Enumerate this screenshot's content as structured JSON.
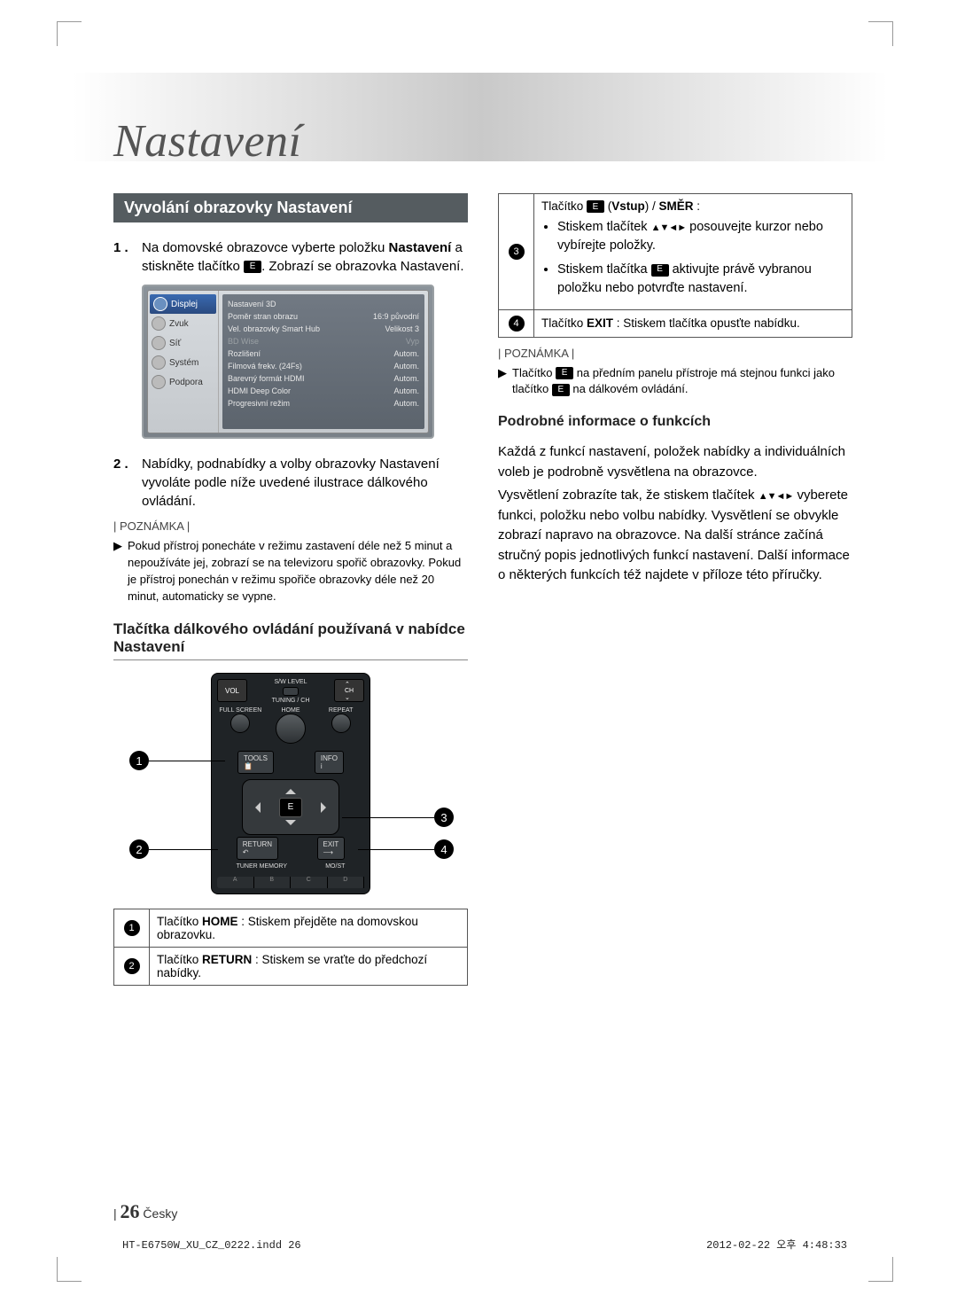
{
  "chapter_title": "Nastavení",
  "section_bar": "Vyvolání obrazovky Nastavení",
  "step1": {
    "n": "1 .",
    "pre": "Na domovské obrazovce vyberte položku ",
    "bold": "Nastavení",
    "mid": " a stiskněte tlačítko ",
    "post": ". Zobrazí se obrazovka Nastavení."
  },
  "settings_panel": {
    "side_items": [
      {
        "label": "Displej",
        "selected": true
      },
      {
        "label": "Zvuk",
        "selected": false
      },
      {
        "label": "Síť",
        "selected": false
      },
      {
        "label": "Systém",
        "selected": false
      },
      {
        "label": "Podpora",
        "selected": false
      }
    ],
    "rows": [
      {
        "l": "Nastavení 3D",
        "r": "",
        "dim": false
      },
      {
        "l": "Poměr stran obrazu",
        "r": "16:9 původní",
        "dim": false
      },
      {
        "l": "Vel. obrazovky Smart Hub",
        "r": "Velikost 3",
        "dim": false
      },
      {
        "l": "BD Wise",
        "r": "Vyp",
        "dim": true
      },
      {
        "l": "Rozlišení",
        "r": "Autom.",
        "dim": false
      },
      {
        "l": "Filmová frekv. (24Fs)",
        "r": "Autom.",
        "dim": false
      },
      {
        "l": "Barevný formát HDMI",
        "r": "Autom.",
        "dim": false
      },
      {
        "l": "HDMI Deep Color",
        "r": "Autom.",
        "dim": false
      },
      {
        "l": "Progresivní režim",
        "r": "Autom.",
        "dim": false
      }
    ]
  },
  "step2": {
    "n": "2 .",
    "text": "Nabídky, podnabídky a volby obrazovky Nastavení vyvoláte podle níže uvedené ilustrace dálkového ovládání."
  },
  "note_label": "| POZNÁMKA |",
  "note1": "Pokud přístroj ponecháte v režimu zastavení déle než 5 minut a nepoužíváte jej, zobrazí se na televizoru spořič obrazovky. Pokud je přístroj ponechán v režimu spořiče obrazovky déle než 20 minut, automaticky se vypne.",
  "h3_remote": "Tlačítka dálkového ovládání používaná v nabídce Nastavení",
  "remote": {
    "vol": "VOL",
    "swlevel": "S/W LEVEL",
    "tuning_ch": "TUNING / CH",
    "fullscreen": "FULL SCREEN",
    "home": "HOME",
    "repeat": "REPEAT",
    "tools": "TOOLS",
    "info": "INFO",
    "return": "RETURN",
    "exit": "EXIT",
    "tuner_memory": "TUNER MEMORY",
    "most": "MO/ST",
    "abcd": [
      "A",
      "B",
      "C",
      "D"
    ]
  },
  "btn_rows": [
    {
      "num": "1",
      "bold": "HOME",
      "pre": "Tlačítko ",
      "post": " : Stiskem přejděte na domovskou obrazovku."
    },
    {
      "num": "2",
      "bold": "RETURN",
      "pre": "Tlačítko ",
      "post": " : Stiskem se vraťte do předchozí nabídky."
    },
    {
      "num": "3",
      "bold": "Vstup",
      "pre": "Tlačítko ",
      "mid": " (",
      "post": ") / ",
      "bold2": "SMĚR",
      "end": " :",
      "bullets": [
        {
          "pre": "Stiskem tlačítek ",
          "arrows": "▲▼◄►",
          "post": " posouvejte kurzor nebo vybírejte položky."
        },
        {
          "pre": "Stiskem tlačítka ",
          "enter": true,
          "post": " aktivujte právě vybranou položku nebo potvrďte nastavení."
        }
      ]
    },
    {
      "num": "4",
      "bold": "EXIT",
      "pre": "Tlačítko ",
      "post": " : Stiskem tlačítka opusťte nabídku."
    }
  ],
  "note2": {
    "pre": "Tlačítko ",
    "mid": " na předním panelu přístroje má stejnou funkci jako tlačítko ",
    "post": " na dálkovém ovládání."
  },
  "h3_info": "Podrobné informace o funkcích",
  "info_p1": "Každá z funkcí nastavení, položek nabídky a individuálních voleb je podrobně vysvětlena na obrazovce.",
  "info_p2": {
    "pre": "Vysvětlení zobrazíte tak, že stiskem tlačítek ",
    "arrows": "▲▼◄►",
    "post": " vyberete funkci, položku nebo volbu nabídky. Vysvětlení se obvykle zobrazí napravo na obrazovce. Na další stránce začíná stručný popis jednotlivých funkcí nastavení. Další informace o některých funkcích též najdete v příloze této příručky."
  },
  "page_number": "26",
  "page_lang": "Česky",
  "indd": "HT-E6750W_XU_CZ_0222.indd   26",
  "timestamp": "2012-02-22   오후 4:48:33",
  "colors": {
    "bar_bg": "#555c60",
    "gradient_mid": "#c9c9c9"
  }
}
